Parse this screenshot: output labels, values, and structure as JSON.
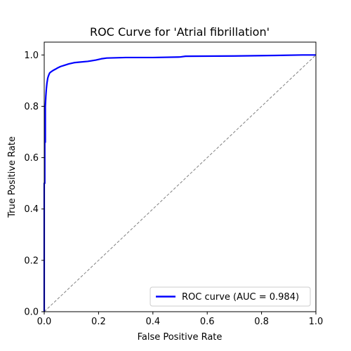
{
  "chart_data": {
    "type": "line",
    "title": "ROC Curve for 'Atrial fibrillation'",
    "xlabel": "False Positive Rate",
    "ylabel": "True Positive Rate",
    "xlim": [
      0.0,
      1.0
    ],
    "ylim": [
      0.0,
      1.05
    ],
    "x_ticks": [
      "0.0",
      "0.2",
      "0.4",
      "0.6",
      "0.8",
      "1.0"
    ],
    "y_ticks": [
      "0.0",
      "0.2",
      "0.4",
      "0.6",
      "0.8",
      "1.0"
    ],
    "grid": false,
    "legend_position": "lower-right",
    "series": [
      {
        "name": "ROC curve (AUC = 0.984)",
        "color": "#0000ff",
        "style": "solid",
        "x": [
          0.0,
          0.0,
          0.002,
          0.002,
          0.004,
          0.004,
          0.006,
          0.008,
          0.01,
          0.013,
          0.016,
          0.02,
          0.026,
          0.033,
          0.042,
          0.05,
          0.06,
          0.075,
          0.09,
          0.11,
          0.13,
          0.16,
          0.19,
          0.21,
          0.23,
          0.3,
          0.4,
          0.5,
          0.52,
          0.7,
          0.85,
          0.95,
          1.0
        ],
        "y": [
          0.0,
          0.5,
          0.5,
          0.66,
          0.66,
          0.8,
          0.84,
          0.87,
          0.89,
          0.91,
          0.92,
          0.93,
          0.935,
          0.94,
          0.945,
          0.95,
          0.955,
          0.96,
          0.965,
          0.97,
          0.972,
          0.975,
          0.98,
          0.985,
          0.988,
          0.99,
          0.99,
          0.992,
          0.995,
          0.996,
          0.998,
          1.0,
          1.0
        ]
      },
      {
        "color": "#808080",
        "style": "dashed",
        "x": [
          0.0,
          1.0
        ],
        "y": [
          0.0,
          1.0
        ]
      }
    ]
  }
}
